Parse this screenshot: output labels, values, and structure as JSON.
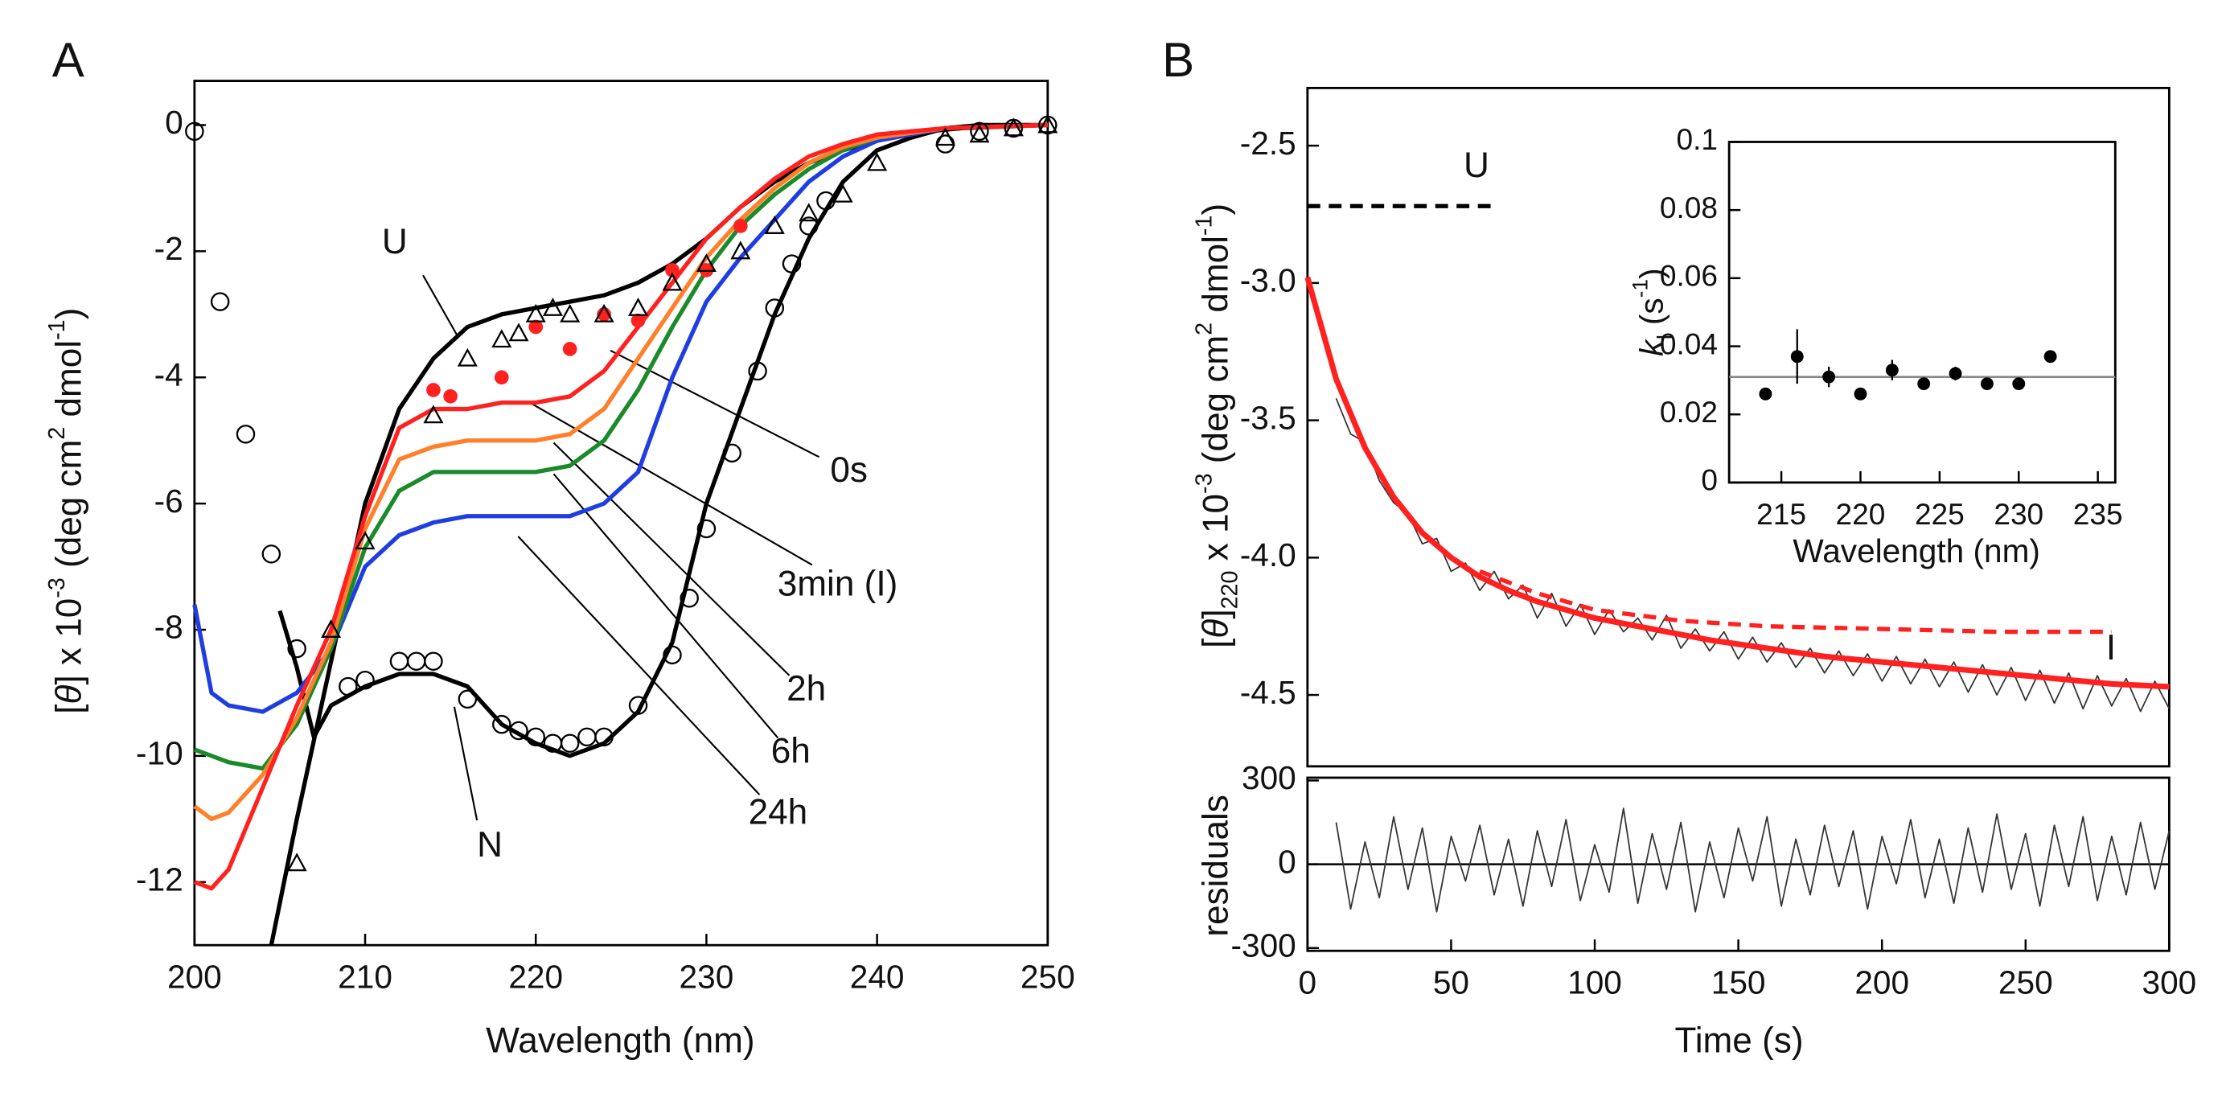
{
  "chart_data": [
    {
      "type": "line",
      "panel": "A",
      "xlabel": "Wavelength (nm)",
      "ylabel": [
        {
          "text": "[",
          "style": "normal"
        },
        {
          "text": "θ",
          "style": "italic"
        },
        {
          "text": "] x 10",
          "style": "normal"
        },
        {
          "text": "-3",
          "style": "sup"
        },
        {
          "text": " (deg cm",
          "style": "normal"
        },
        {
          "text": "2",
          "style": "sup"
        },
        {
          "text": " dmol",
          "style": "normal"
        },
        {
          "text": "-1",
          "style": "sup"
        },
        {
          "text": ")",
          "style": "normal"
        }
      ],
      "xlim": [
        200,
        250
      ],
      "ylim": [
        -13,
        0.7
      ],
      "xticks": [
        200,
        210,
        220,
        230,
        240,
        250
      ],
      "yticks": [
        -12,
        -10,
        -8,
        -6,
        -4,
        -2,
        0
      ],
      "series": [
        {
          "name": "U",
          "color": "#000000",
          "width": 3,
          "x": [
            204.5,
            206,
            208,
            210,
            212,
            214,
            216,
            218,
            220,
            222,
            224,
            226,
            228,
            230,
            232,
            234,
            236,
            238,
            240,
            242,
            245,
            250
          ],
          "values": [
            -13,
            -11,
            -8.5,
            -6,
            -4.5,
            -3.7,
            -3.2,
            -3,
            -2.9,
            -2.8,
            -2.7,
            -2.5,
            -2.2,
            -1.8,
            -1.3,
            -0.9,
            -0.6,
            -0.4,
            -0.25,
            -0.12,
            -0.05,
            0
          ]
        },
        {
          "name": "N",
          "color": "#000000",
          "width": 3,
          "x": [
            205,
            206,
            207,
            208,
            210,
            212,
            214,
            216,
            218,
            220,
            222,
            224,
            226,
            228,
            230,
            232,
            234,
            236,
            238,
            240,
            242,
            244,
            246,
            250
          ],
          "values": [
            -7.7,
            -8.6,
            -9.7,
            -9.2,
            -8.9,
            -8.7,
            -8.7,
            -8.9,
            -9.5,
            -9.8,
            -10,
            -9.8,
            -9.3,
            -8.2,
            -6,
            -4.5,
            -3,
            -1.8,
            -0.9,
            -0.4,
            -0.2,
            -0.05,
            0,
            0
          ]
        },
        {
          "name": "24h",
          "color": "#1f3de0",
          "width": 3,
          "x": [
            200,
            201,
            202,
            204,
            206,
            208,
            210,
            212,
            214,
            216,
            218,
            220,
            222,
            224,
            226,
            228,
            230,
            232,
            234,
            236,
            238,
            240,
            244,
            250
          ],
          "values": [
            -7.6,
            -9,
            -9.2,
            -9.3,
            -9,
            -8.3,
            -7,
            -6.5,
            -6.3,
            -6.2,
            -6.2,
            -6.2,
            -6.2,
            -6,
            -5.5,
            -4,
            -2.8,
            -2.1,
            -1.5,
            -0.9,
            -0.5,
            -0.25,
            -0.05,
            0
          ]
        },
        {
          "name": "6h",
          "color": "#1a8a2a",
          "width": 3,
          "x": [
            200,
            201,
            202,
            204,
            206,
            208,
            210,
            212,
            214,
            216,
            218,
            220,
            222,
            224,
            226,
            228,
            230,
            232,
            234,
            236,
            238,
            240,
            244,
            250
          ],
          "values": [
            -9.9,
            -10,
            -10.1,
            -10.2,
            -9.5,
            -8.3,
            -6.7,
            -5.8,
            -5.5,
            -5.5,
            -5.5,
            -5.5,
            -5.4,
            -5,
            -4.2,
            -3.2,
            -2.3,
            -1.6,
            -1.1,
            -0.7,
            -0.4,
            -0.2,
            -0.05,
            0
          ]
        },
        {
          "name": "2h",
          "color": "#ff7f2a",
          "width": 3,
          "x": [
            200,
            201,
            202,
            204,
            206,
            208,
            210,
            212,
            214,
            216,
            218,
            220,
            222,
            224,
            226,
            228,
            230,
            232,
            234,
            236,
            238,
            240,
            244,
            250
          ],
          "values": [
            -10.8,
            -11,
            -10.9,
            -10.3,
            -9.4,
            -8.2,
            -6.4,
            -5.3,
            -5.1,
            -5,
            -5,
            -5,
            -4.9,
            -4.5,
            -3.7,
            -2.9,
            -2.1,
            -1.5,
            -1,
            -0.6,
            -0.35,
            -0.2,
            -0.05,
            0
          ]
        },
        {
          "name": "3min (I)",
          "color": "#ff2020",
          "width": 3,
          "x": [
            200,
            201,
            202,
            204,
            206,
            208,
            210,
            212,
            214,
            216,
            218,
            220,
            222,
            224,
            226,
            228,
            230,
            232,
            234,
            236,
            238,
            240,
            244,
            250
          ],
          "values": [
            -12,
            -12.1,
            -11.8,
            -10.5,
            -9.2,
            -8,
            -6.2,
            -4.8,
            -4.5,
            -4.5,
            -4.4,
            -4.4,
            -4.3,
            -3.9,
            -3.2,
            -2.5,
            -1.8,
            -1.3,
            -0.85,
            -0.5,
            -0.3,
            -0.15,
            -0.05,
            0
          ]
        },
        {
          "name": "0s",
          "color": "#ff2020",
          "marker": "dot",
          "x": [
            214,
            215,
            218,
            220,
            222,
            224,
            226,
            228,
            230,
            232
          ],
          "values": [
            -4.2,
            -4.3,
            -4.0,
            -3.2,
            -3.55,
            -3.0,
            -3.1,
            -2.3,
            -2.3,
            -1.6
          ]
        },
        {
          "color": "#000000",
          "marker": "triangle",
          "x": [
            206,
            208,
            210,
            214,
            216,
            218,
            219,
            220,
            221,
            222,
            224,
            226,
            228,
            230,
            232,
            234,
            236,
            238,
            240,
            244,
            246,
            248,
            250
          ],
          "values": [
            -11.7,
            -8,
            -6.6,
            -4.6,
            -3.7,
            -3.4,
            -3.3,
            -3,
            -2.9,
            -3,
            -3,
            -2.9,
            -2.5,
            -2.2,
            -2,
            -1.6,
            -1.4,
            -1.1,
            -0.6,
            -0.2,
            -0.15,
            -0.05,
            0
          ]
        },
        {
          "color": "#000000",
          "marker": "circle",
          "x": [
            200,
            201.5,
            203,
            204.5,
            206,
            209,
            210,
            212,
            213,
            214,
            216,
            218,
            219,
            220,
            221,
            222,
            223,
            224,
            226,
            228,
            229,
            230,
            231.5,
            233,
            234,
            235,
            236,
            237,
            244,
            246,
            248,
            250
          ],
          "values": [
            -0.1,
            -2.8,
            -4.9,
            -6.8,
            -8.3,
            -8.9,
            -8.8,
            -8.5,
            -8.5,
            -8.5,
            -9.1,
            -9.5,
            -9.6,
            -9.7,
            -9.8,
            -9.8,
            -9.7,
            -9.7,
            -9.2,
            -8.4,
            -7.5,
            -6.4,
            -5.2,
            -3.9,
            -2.9,
            -2.2,
            -1.6,
            -1.2,
            -0.3,
            -0.1,
            -0.05,
            0
          ]
        }
      ]
    },
    {
      "type": "line",
      "panel": "B",
      "ylabel": [
        {
          "text": "[",
          "style": "normal"
        },
        {
          "text": "θ",
          "style": "italic"
        },
        {
          "text": "]",
          "style": "normal"
        },
        {
          "text": "220",
          "style": "sub"
        },
        {
          "text": " x 10",
          "style": "normal"
        },
        {
          "text": "-3",
          "style": "sup"
        },
        {
          "text": " (deg cm",
          "style": "normal"
        },
        {
          "text": "2",
          "style": "sup"
        },
        {
          "text": " dmol",
          "style": "normal"
        },
        {
          "text": "-1",
          "style": "sup"
        },
        {
          "text": ")",
          "style": "normal"
        }
      ],
      "xlim": [
        0,
        300
      ],
      "ylim": [
        -4.76,
        -2.29
      ],
      "yticks": [
        -2.5,
        {
          "value": -3,
          "label": "-3.0"
        },
        -3.5,
        {
          "value": -4,
          "label": "-4.0"
        },
        -4.5
      ],
      "series": [
        {
          "color": "#333333",
          "width": 1,
          "x": [
            10,
            15,
            20,
            25,
            30,
            35,
            40,
            45,
            50,
            55,
            60,
            65,
            70,
            75,
            80,
            85,
            90,
            95,
            100,
            105,
            110,
            115,
            120,
            125,
            130,
            135,
            140,
            145,
            150,
            155,
            160,
            165,
            170,
            175,
            180,
            185,
            190,
            195,
            200,
            205,
            210,
            215,
            220,
            225,
            230,
            235,
            240,
            245,
            250,
            255,
            260,
            265,
            270,
            275,
            280,
            285,
            290,
            295,
            300
          ],
          "values": [
            -3.42,
            -3.55,
            -3.58,
            -3.72,
            -3.8,
            -3.84,
            -3.95,
            -3.93,
            -4.05,
            -4.02,
            -4.12,
            -4.05,
            -4.15,
            -4.1,
            -4.22,
            -4.13,
            -4.25,
            -4.17,
            -4.28,
            -4.19,
            -4.27,
            -4.22,
            -4.3,
            -4.21,
            -4.33,
            -4.26,
            -4.34,
            -4.27,
            -4.37,
            -4.29,
            -4.38,
            -4.31,
            -4.4,
            -4.33,
            -4.42,
            -4.34,
            -4.43,
            -4.35,
            -4.45,
            -4.36,
            -4.46,
            -4.37,
            -4.47,
            -4.38,
            -4.49,
            -4.39,
            -4.5,
            -4.4,
            -4.52,
            -4.41,
            -4.53,
            -4.42,
            -4.55,
            -4.43,
            -4.54,
            -4.44,
            -4.56,
            -4.45,
            -4.55
          ]
        },
        {
          "color": "#ff2020",
          "width": 4,
          "x": [
            0,
            10,
            20,
            30,
            40,
            50,
            60,
            70,
            80,
            90,
            100,
            120,
            140,
            160,
            180,
            200,
            220,
            240,
            260,
            280,
            300
          ],
          "values": [
            -2.98,
            -3.35,
            -3.6,
            -3.78,
            -3.91,
            -4.0,
            -4.07,
            -4.12,
            -4.16,
            -4.19,
            -4.22,
            -4.26,
            -4.3,
            -4.33,
            -4.36,
            -4.38,
            -4.4,
            -4.42,
            -4.44,
            -4.46,
            -4.47
          ]
        },
        {
          "name": "I",
          "color": "#ff2020",
          "width": 3,
          "dash": true,
          "x": [
            60,
            80,
            100,
            130,
            160,
            200,
            240,
            280
          ],
          "values": [
            -4.05,
            -4.13,
            -4.19,
            -4.23,
            -4.25,
            -4.26,
            -4.27,
            -4.27
          ]
        },
        {
          "name": "U",
          "color": "#000000",
          "width": 3,
          "dash": true,
          "x": [
            0,
            65
          ],
          "values": [
            -2.72,
            -2.72
          ]
        }
      ]
    },
    {
      "type": "line",
      "xlabel": "Time (s)",
      "ylabel": [
        {
          "text": "residuals",
          "style": "normal"
        }
      ],
      "xlim": [
        0,
        300
      ],
      "ylim": [
        -310,
        310
      ],
      "xticks": [
        0,
        50,
        100,
        150,
        200,
        250,
        300
      ],
      "yticks": [
        -300,
        0,
        300
      ],
      "series": [
        {
          "color": "#333333",
          "width": 1,
          "x": [
            10,
            15,
            20,
            25,
            30,
            35,
            40,
            45,
            50,
            55,
            60,
            65,
            70,
            75,
            80,
            85,
            90,
            95,
            100,
            105,
            110,
            115,
            120,
            125,
            130,
            135,
            140,
            145,
            150,
            155,
            160,
            165,
            170,
            175,
            180,
            185,
            190,
            195,
            200,
            205,
            210,
            215,
            220,
            225,
            230,
            235,
            240,
            245,
            250,
            255,
            260,
            265,
            270,
            275,
            280,
            285,
            290,
            295,
            300
          ],
          "values": [
            150,
            -160,
            80,
            -120,
            170,
            -90,
            130,
            -170,
            100,
            -60,
            140,
            -110,
            90,
            -150,
            120,
            -80,
            160,
            -130,
            70,
            -100,
            200,
            -140,
            110,
            -90,
            150,
            -170,
            80,
            -120,
            130,
            -60,
            170,
            -150,
            90,
            -110,
            140,
            -80,
            120,
            -160,
            100,
            -70,
            160,
            -120,
            90,
            -140,
            130,
            -100,
            180,
            -90,
            110,
            -150,
            140,
            -80,
            170,
            -130,
            100,
            -110,
            150,
            -90,
            120
          ]
        }
      ]
    },
    {
      "type": "scatter",
      "xlabel": "Wavelength (nm)",
      "ylabel": [
        {
          "text": "k",
          "style": "italic"
        },
        {
          "text": "I",
          "style": "sub"
        },
        {
          "text": " (s",
          "style": "normal"
        },
        {
          "text": "-1",
          "style": "sup"
        },
        {
          "text": ")",
          "style": "normal"
        }
      ],
      "xlim": [
        211.7,
        236.1
      ],
      "ylim": [
        0,
        0.1
      ],
      "xticks": [
        215,
        220,
        225,
        230,
        235
      ],
      "yticks": [
        0,
        0.02,
        0.04,
        0.06,
        0.08,
        0.1
      ],
      "reference_line": 0.031,
      "color": "#000000",
      "x": [
        214,
        216,
        218,
        220,
        222,
        224,
        226,
        228,
        230,
        232
      ],
      "values": [
        0.026,
        0.037,
        0.031,
        0.026,
        0.033,
        0.029,
        0.032,
        0.029,
        0.029,
        0.037
      ],
      "errors": [
        0.001,
        0.008,
        0.003,
        0.001,
        0.003,
        0.001,
        0.002,
        0.001,
        0.001,
        0.001
      ]
    }
  ]
}
